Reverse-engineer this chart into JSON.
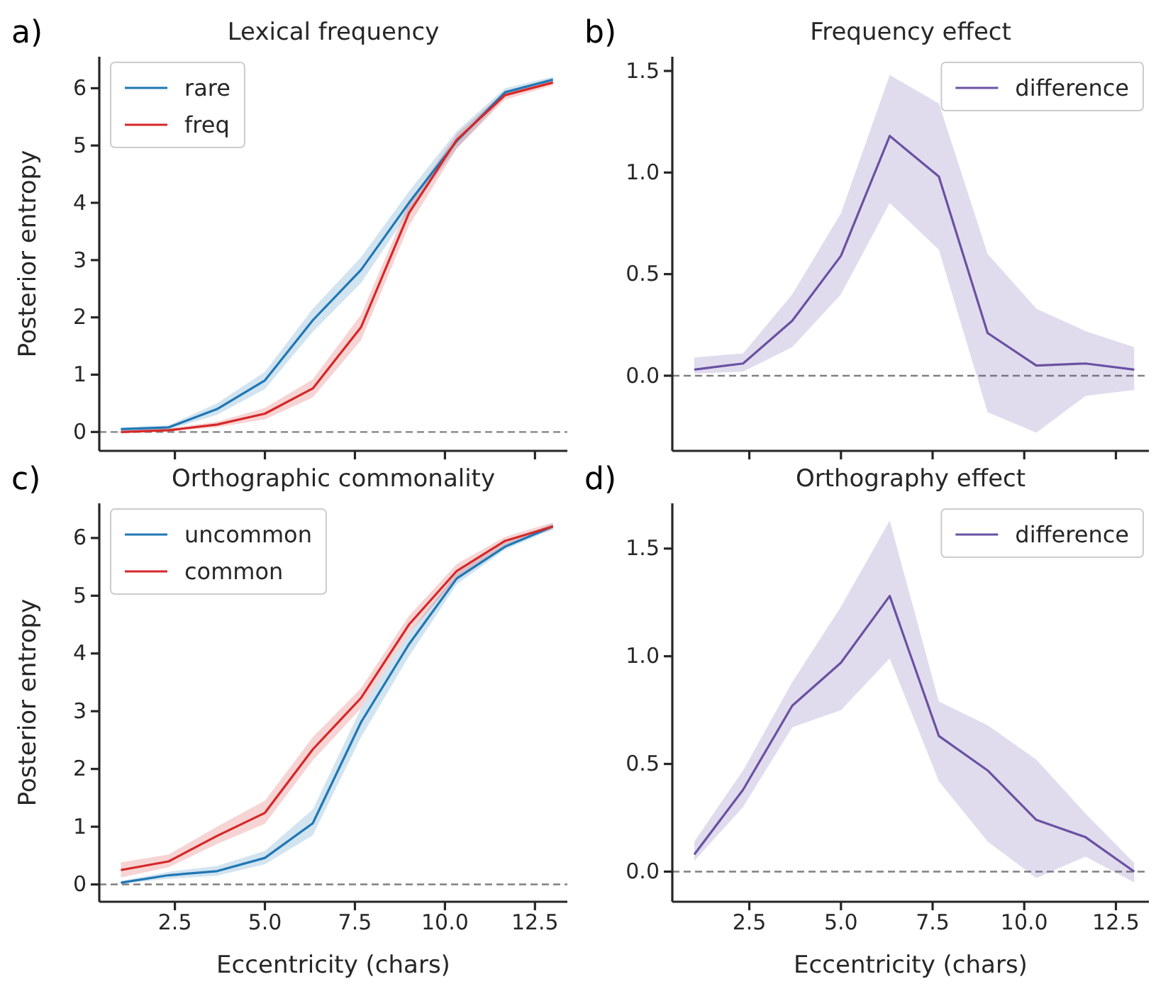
{
  "chart_data": [
    {
      "type": "line",
      "title": "Lexical frequency",
      "ylabel": "Posterior entropy",
      "annotations": [
        "a)"
      ],
      "x": [
        1,
        2.33,
        3.67,
        5,
        6.33,
        7.67,
        9,
        10.33,
        11.67,
        13
      ],
      "xlim": [
        0.4,
        13.4
      ],
      "xticks": [
        2.5,
        5,
        7.5,
        10,
        12.5
      ],
      "ylim": [
        -0.33,
        6.55
      ],
      "yticks": [
        0,
        1,
        2,
        3,
        4,
        5,
        6
      ],
      "tick_labels": "y",
      "legend": "top left",
      "grid": false,
      "line_style": "solid",
      "marker": "none",
      "ref_lines": [
        {
          "axis": "y",
          "value": 0,
          "color": "#808080",
          "line_style": "dashed"
        }
      ],
      "series": [
        {
          "name": "rare",
          "color": "#1f77b4",
          "values": [
            0.05,
            0.08,
            0.4,
            0.9,
            1.95,
            2.83,
            4.0,
            5.08,
            5.93,
            6.15
          ],
          "lower": [
            0.02,
            0.04,
            0.3,
            0.75,
            1.75,
            2.6,
            3.85,
            4.95,
            5.85,
            6.1
          ],
          "upper": [
            0.08,
            0.12,
            0.5,
            1.05,
            2.15,
            3.05,
            4.2,
            5.25,
            6.0,
            6.2
          ]
        },
        {
          "name": "freq",
          "color": "#d62728",
          "values": [
            0,
            0.03,
            0.13,
            0.32,
            0.76,
            1.83,
            3.82,
            5.1,
            5.88,
            6.1
          ],
          "lower": [
            0,
            0.01,
            0.08,
            0.22,
            0.6,
            1.6,
            3.6,
            4.95,
            5.8,
            6.05
          ],
          "upper": [
            0.02,
            0.06,
            0.18,
            0.42,
            0.92,
            2.05,
            4.0,
            5.2,
            5.95,
            6.15
          ]
        }
      ]
    },
    {
      "type": "line",
      "title": "Frequency effect",
      "annotations": [
        "b)"
      ],
      "x": [
        1,
        2.33,
        3.67,
        5,
        6.33,
        7.67,
        9,
        10.33,
        11.67,
        13
      ],
      "xlim": [
        0.4,
        13.4
      ],
      "xticks": [
        2.5,
        5,
        7.5,
        10,
        12.5
      ],
      "ylim": [
        -0.37,
        1.57
      ],
      "yticks": [
        {
          "value": 0,
          "label": "0.0"
        },
        {
          "value": 0.5,
          "label": "0.5"
        },
        {
          "value": 1,
          "label": "1.0"
        },
        {
          "value": 1.5,
          "label": "1.5"
        }
      ],
      "tick_labels": "y",
      "legend": "top right",
      "grid": false,
      "line_style": "solid",
      "marker": "none",
      "ref_lines": [
        {
          "axis": "y",
          "value": 0,
          "color": "#808080",
          "line_style": "dashed"
        }
      ],
      "series": [
        {
          "name": "difference",
          "color": "#6a51a3",
          "values": [
            0.03,
            0.06,
            0.27,
            0.59,
            1.18,
            0.98,
            0.21,
            0.05,
            0.06,
            0.03
          ],
          "lower": [
            0.01,
            0.02,
            0.14,
            0.4,
            0.85,
            0.62,
            -0.18,
            -0.28,
            -0.1,
            -0.07
          ],
          "upper": [
            0.09,
            0.11,
            0.4,
            0.8,
            1.48,
            1.34,
            0.6,
            0.33,
            0.22,
            0.14
          ]
        }
      ]
    },
    {
      "type": "line",
      "title": "Orthographic commonality",
      "xlabel": "Eccentricity (chars)",
      "ylabel": "Posterior entropy",
      "annotations": [
        "c)"
      ],
      "x": [
        1,
        2.33,
        3.67,
        5,
        6.33,
        7.67,
        9,
        10.33,
        11.67,
        13
      ],
      "xlim": [
        0.4,
        13.4
      ],
      "xticks": [
        {
          "value": 2.5,
          "label": "2.5"
        },
        {
          "value": 5,
          "label": "5.0"
        },
        {
          "value": 7.5,
          "label": "7.5"
        },
        {
          "value": 10,
          "label": "10.0"
        },
        {
          "value": 12.5,
          "label": "12.5"
        }
      ],
      "ylim": [
        -0.3,
        6.6
      ],
      "yticks": [
        0,
        1,
        2,
        3,
        4,
        5,
        6
      ],
      "legend": "top left",
      "grid": false,
      "line_style": "solid",
      "marker": "none",
      "ref_lines": [
        {
          "axis": "y",
          "value": 0,
          "color": "#808080",
          "line_style": "dashed"
        }
      ],
      "series": [
        {
          "name": "uncommon",
          "color": "#1f77b4",
          "values": [
            0.03,
            0.16,
            0.23,
            0.46,
            1.06,
            2.81,
            4.16,
            5.3,
            5.85,
            6.2
          ],
          "lower": [
            0.01,
            0.1,
            0.15,
            0.35,
            0.85,
            2.55,
            3.95,
            5.2,
            5.8,
            6.15
          ],
          "upper": [
            0.06,
            0.22,
            0.32,
            0.58,
            1.3,
            3.05,
            4.35,
            5.4,
            5.92,
            6.25
          ]
        },
        {
          "name": "common",
          "color": "#d62728",
          "values": [
            0.25,
            0.4,
            0.84,
            1.24,
            2.34,
            3.23,
            4.5,
            5.43,
            5.95,
            6.2
          ],
          "lower": [
            0.12,
            0.3,
            0.7,
            1.05,
            2.15,
            3.05,
            4.35,
            5.3,
            5.88,
            6.15
          ],
          "upper": [
            0.38,
            0.52,
            1.0,
            1.45,
            2.55,
            3.4,
            4.65,
            5.55,
            6.02,
            6.27
          ]
        }
      ]
    },
    {
      "type": "line",
      "title": "Orthography effect",
      "xlabel": "Eccentricity (chars)",
      "annotations": [
        "d)"
      ],
      "x": [
        1,
        2.33,
        3.67,
        5,
        6.33,
        7.67,
        9,
        10.33,
        11.67,
        13
      ],
      "xlim": [
        0.4,
        13.4
      ],
      "xticks": [
        {
          "value": 2.5,
          "label": "2.5"
        },
        {
          "value": 5,
          "label": "5.0"
        },
        {
          "value": 7.5,
          "label": "7.5"
        },
        {
          "value": 10,
          "label": "10.0"
        },
        {
          "value": 12.5,
          "label": "12.5"
        }
      ],
      "ylim": [
        -0.14,
        1.71
      ],
      "yticks": [
        {
          "value": 0,
          "label": "0.0"
        },
        {
          "value": 0.5,
          "label": "0.5"
        },
        {
          "value": 1,
          "label": "1.0"
        },
        {
          "value": 1.5,
          "label": "1.5"
        }
      ],
      "legend": "top right",
      "grid": false,
      "line_style": "solid",
      "marker": "none",
      "ref_lines": [
        {
          "axis": "y",
          "value": 0,
          "color": "#808080",
          "line_style": "dashed"
        }
      ],
      "series": [
        {
          "name": "difference",
          "color": "#6a51a3",
          "values": [
            0.08,
            0.38,
            0.77,
            0.97,
            1.28,
            0.63,
            0.47,
            0.24,
            0.16,
            0.0
          ],
          "lower": [
            0.05,
            0.3,
            0.67,
            0.75,
            0.99,
            0.42,
            0.14,
            -0.03,
            0.07,
            -0.05
          ],
          "upper": [
            0.14,
            0.47,
            0.88,
            1.23,
            1.63,
            0.79,
            0.68,
            0.52,
            0.27,
            0.04
          ]
        }
      ]
    }
  ]
}
